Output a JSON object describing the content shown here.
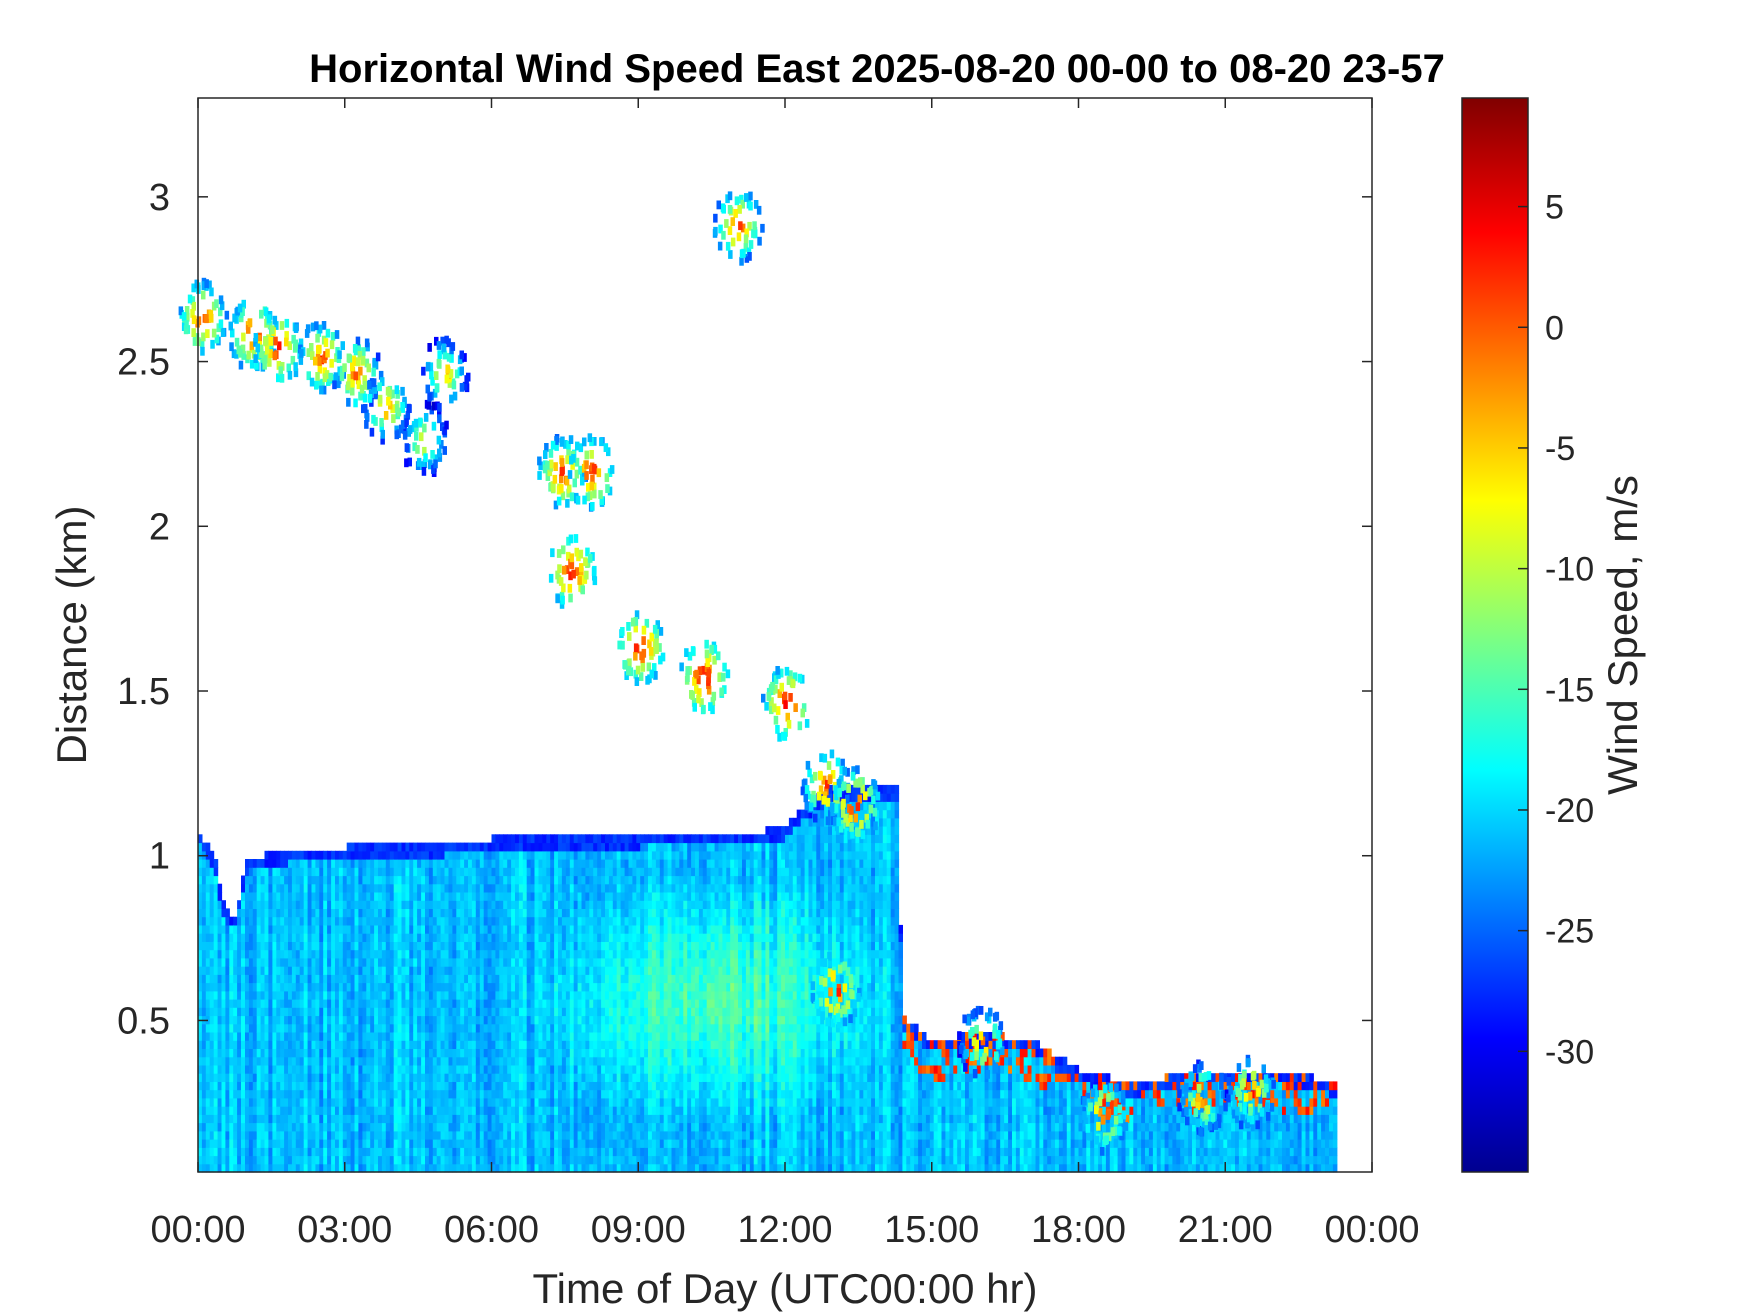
{
  "chart_data": {
    "type": "heatmap",
    "title": "Horizontal Wind Speed East 2025-08-20 00-00 to 08-20 23-57",
    "xlabel": "Time of Day (UTC00:00 hr)",
    "ylabel": "Distance (km)",
    "colorbar_label": "Wind Speed, m/s",
    "xlim_hours": [
      0,
      24
    ],
    "ylim_km": [
      0.04,
      3.3
    ],
    "x_ticks": [
      {
        "value": 0,
        "label": "00:00"
      },
      {
        "value": 3,
        "label": "03:00"
      },
      {
        "value": 6,
        "label": "06:00"
      },
      {
        "value": 9,
        "label": "09:00"
      },
      {
        "value": 12,
        "label": "12:00"
      },
      {
        "value": 15,
        "label": "15:00"
      },
      {
        "value": 18,
        "label": "18:00"
      },
      {
        "value": 21,
        "label": "21:00"
      },
      {
        "value": 24,
        "label": "00:00"
      }
    ],
    "y_ticks": [
      {
        "value": 0.5,
        "label": "0.5"
      },
      {
        "value": 1,
        "label": "1"
      },
      {
        "value": 1.5,
        "label": "1.5"
      },
      {
        "value": 2,
        "label": "2"
      },
      {
        "value": 2.5,
        "label": "2.5"
      },
      {
        "value": 3,
        "label": "3"
      }
    ],
    "color_range": [
      -35,
      9.5
    ],
    "colormap": "jet",
    "colorbar_ticks": [
      {
        "value": 5,
        "label": "5"
      },
      {
        "value": 0,
        "label": "0"
      },
      {
        "value": -5,
        "label": "-5"
      },
      {
        "value": -10,
        "label": "-10"
      },
      {
        "value": -15,
        "label": "-15"
      },
      {
        "value": -20,
        "label": "-20"
      },
      {
        "value": -25,
        "label": "-25"
      },
      {
        "value": -30,
        "label": "-30"
      }
    ],
    "grid": false,
    "lower_layer": {
      "description_values": "boundary layer from surface to top height, speed in m/s",
      "top_km": [
        {
          "t": 0.0,
          "h": 1.07
        },
        {
          "t": 0.35,
          "h": 0.98
        },
        {
          "t": 0.5,
          "h": 0.85
        },
        {
          "t": 0.75,
          "h": 0.8
        },
        {
          "t": 1.0,
          "h": 0.98
        },
        {
          "t": 2.0,
          "h": 1.01
        },
        {
          "t": 4.0,
          "h": 1.02
        },
        {
          "t": 6.0,
          "h": 1.04
        },
        {
          "t": 8.0,
          "h": 1.05
        },
        {
          "t": 10.0,
          "h": 1.06
        },
        {
          "t": 11.5,
          "h": 1.06
        },
        {
          "t": 12.0,
          "h": 1.08
        },
        {
          "t": 12.5,
          "h": 1.15
        },
        {
          "t": 13.0,
          "h": 1.2
        },
        {
          "t": 14.3,
          "h": 1.2
        },
        {
          "t": 14.4,
          "h": 0.5
        },
        {
          "t": 15.0,
          "h": 0.43
        },
        {
          "t": 16.0,
          "h": 0.45
        },
        {
          "t": 17.0,
          "h": 0.43
        },
        {
          "t": 18.0,
          "h": 0.34
        },
        {
          "t": 19.0,
          "h": 0.3
        },
        {
          "t": 20.0,
          "h": 0.32
        },
        {
          "t": 21.0,
          "h": 0.34
        },
        {
          "t": 22.0,
          "h": 0.34
        },
        {
          "t": 23.25,
          "h": 0.3
        }
      ],
      "speed_base": -21,
      "speed_peak": -14
    },
    "upper_features": [
      {
        "t": 0.05,
        "h": 2.62,
        "v": 4
      },
      {
        "t": 1.1,
        "h": 2.57,
        "v": 5
      },
      {
        "t": 1.6,
        "h": 2.53,
        "v": 5
      },
      {
        "t": 2.5,
        "h": 2.5,
        "v": 3
      },
      {
        "t": 3.2,
        "h": 2.45,
        "v": 2
      },
      {
        "t": 3.8,
        "h": 2.35,
        "v": 0
      },
      {
        "t": 4.6,
        "h": 2.25,
        "v": -3
      },
      {
        "t": 5.0,
        "h": 2.45,
        "v": -2
      },
      {
        "t": 7.4,
        "h": 2.15,
        "v": 4
      },
      {
        "t": 8.0,
        "h": 2.15,
        "v": 5
      },
      {
        "t": 7.6,
        "h": 1.85,
        "v": 6
      },
      {
        "t": 9.0,
        "h": 1.62,
        "v": 6
      },
      {
        "t": 10.3,
        "h": 1.53,
        "v": 7
      },
      {
        "t": 11.0,
        "h": 2.9,
        "v": 3
      },
      {
        "t": 12.0,
        "h": 1.45,
        "v": 6
      },
      {
        "t": 12.8,
        "h": 1.2,
        "v": 3
      },
      {
        "t": 13.4,
        "h": 1.14,
        "v": 5
      },
      {
        "t": 13.0,
        "h": 0.58,
        "v": 5
      },
      {
        "t": 16.0,
        "h": 0.42,
        "v": 0
      },
      {
        "t": 18.5,
        "h": 0.2,
        "v": 2
      },
      {
        "t": 20.5,
        "h": 0.25,
        "v": 0
      },
      {
        "t": 21.5,
        "h": 0.27,
        "v": 1
      }
    ]
  }
}
